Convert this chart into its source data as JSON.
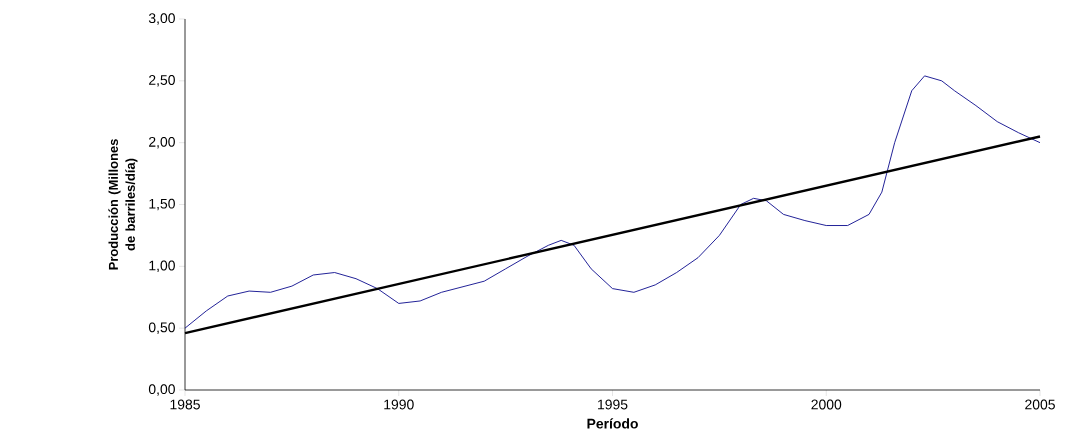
{
  "chart_data": {
    "type": "line",
    "xlabel": "Período",
    "ylabel": "Producción (Millones de barriles/día)",
    "xlim": [
      1985,
      2005
    ],
    "xticks": [
      1985,
      1990,
      1995,
      2000,
      2005
    ],
    "ylim": [
      0,
      3
    ],
    "yticks": [
      {
        "value": 0,
        "label": "0,00"
      },
      {
        "value": 0.5,
        "label": "0,50"
      },
      {
        "value": 1,
        "label": "1,00"
      },
      {
        "value": 1.5,
        "label": "1,50"
      },
      {
        "value": 2,
        "label": "2,00"
      },
      {
        "value": 2.5,
        "label": "2,50"
      },
      {
        "value": 3,
        "label": "3,00"
      }
    ],
    "grid": false,
    "legend": false,
    "series": [
      {
        "color": "#0a0a8c",
        "x": [
          1985.0,
          1985.5,
          1986.0,
          1986.5,
          1987.0,
          1987.5,
          1988.0,
          1988.5,
          1989.0,
          1989.5,
          1990.0,
          1990.5,
          1991.0,
          1992.0,
          1992.5,
          1993.0,
          1993.5,
          1993.8,
          1994.1,
          1994.5,
          1995.0,
          1995.5,
          1996.0,
          1996.5,
          1997.0,
          1997.5,
          1998.0,
          1998.3,
          1998.6,
          1999.0,
          1999.5,
          2000.0,
          2000.5,
          2001.0,
          2001.3,
          2001.6,
          2002.0,
          2002.3,
          2002.7,
          2003.0,
          2003.5,
          2004.0,
          2004.5,
          2005.0
        ],
        "values": [
          0.5,
          0.64,
          0.76,
          0.8,
          0.79,
          0.84,
          0.93,
          0.95,
          0.9,
          0.82,
          0.7,
          0.72,
          0.79,
          0.88,
          0.98,
          1.08,
          1.17,
          1.21,
          1.17,
          0.98,
          0.82,
          0.79,
          0.85,
          0.95,
          1.07,
          1.25,
          1.5,
          1.55,
          1.53,
          1.42,
          1.37,
          1.33,
          1.33,
          1.42,
          1.6,
          2.0,
          2.42,
          2.54,
          2.5,
          2.42,
          2.3,
          2.17,
          2.08,
          2.0
        ]
      },
      {
        "type": "line",
        "color": "#000000",
        "x": [
          1985,
          2005
        ],
        "values": [
          0.46,
          2.05
        ]
      }
    ]
  }
}
